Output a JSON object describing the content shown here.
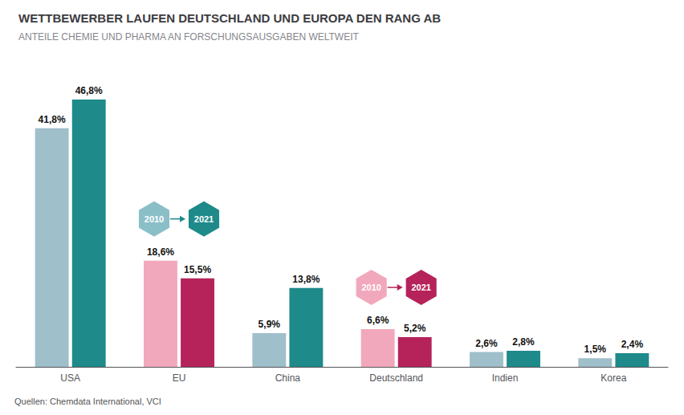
{
  "chart_data": {
    "type": "bar",
    "title": "WETTBEWERBER LAUFEN DEUTSCHLAND UND EUROPA DEN RANG AB",
    "subtitle": "ANTEILE CHEMIE UND PHARMA AN FORSCHUNGSAUSGABEN WELTWEIT",
    "categories": [
      "USA",
      "EU",
      "China",
      "Deutschland",
      "Indien",
      "Korea"
    ],
    "series": [
      {
        "name": "2010",
        "values": [
          41.8,
          18.6,
          5.9,
          6.6,
          2.6,
          1.5
        ],
        "value_labels": [
          "41,8%",
          "18,6%",
          "5,9%",
          "6,6%",
          "2,6%",
          "1,5%"
        ],
        "colors": [
          "#9fbfca",
          "#f2a8bc",
          "#9fbfca",
          "#f2a8bc",
          "#9fbfca",
          "#9fbfca"
        ]
      },
      {
        "name": "2021",
        "values": [
          46.8,
          15.5,
          13.8,
          5.2,
          2.8,
          2.4
        ],
        "value_labels": [
          "46,8%",
          "15,5%",
          "13,8%",
          "5,2%",
          "2,8%",
          "2,4%"
        ],
        "colors": [
          "#1e8a8a",
          "#b5235a",
          "#1e8a8a",
          "#b5235a",
          "#1e8a8a",
          "#1e8a8a"
        ]
      }
    ],
    "ylim": [
      0,
      53
    ],
    "grid": false,
    "tick_labels": "x",
    "data_labels": true,
    "annotations": [
      {
        "text": "2010",
        "color": "#8bbfc8",
        "category": "EU"
      },
      {
        "text": "2021",
        "color": "#1e8a8a",
        "category": "EU"
      },
      {
        "text": "2010",
        "color": "#f2a8bc",
        "category": "Deutschland"
      },
      {
        "text": "2021",
        "color": "#b5235a",
        "category": "Deutschland"
      },
      {
        "text": "Quellen: Chemdata International, VCI"
      }
    ]
  }
}
